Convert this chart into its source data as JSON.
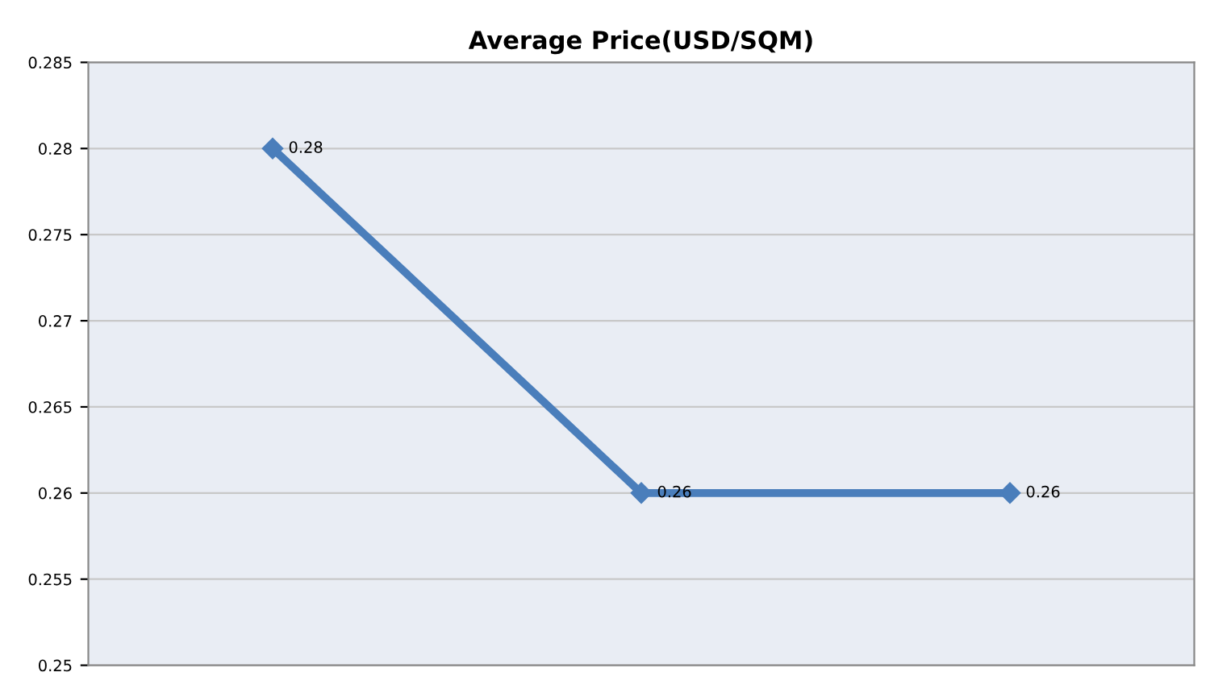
{
  "chart_data": {
    "type": "line",
    "title": "Average Price(USD/SQM)",
    "categories": [
      null,
      null,
      null
    ],
    "series": [
      {
        "color": "#4a7ebb",
        "values": [
          0.28,
          0.26,
          0.26
        ]
      }
    ],
    "ylim": [
      0.25,
      0.285
    ],
    "yticks": [
      0.25,
      0.255,
      0.26,
      0.265,
      0.27,
      0.275,
      0.28,
      0.285
    ],
    "grid": "y",
    "marker": "diamond",
    "line_style": "solid",
    "data_labels": true,
    "legend": false
  }
}
